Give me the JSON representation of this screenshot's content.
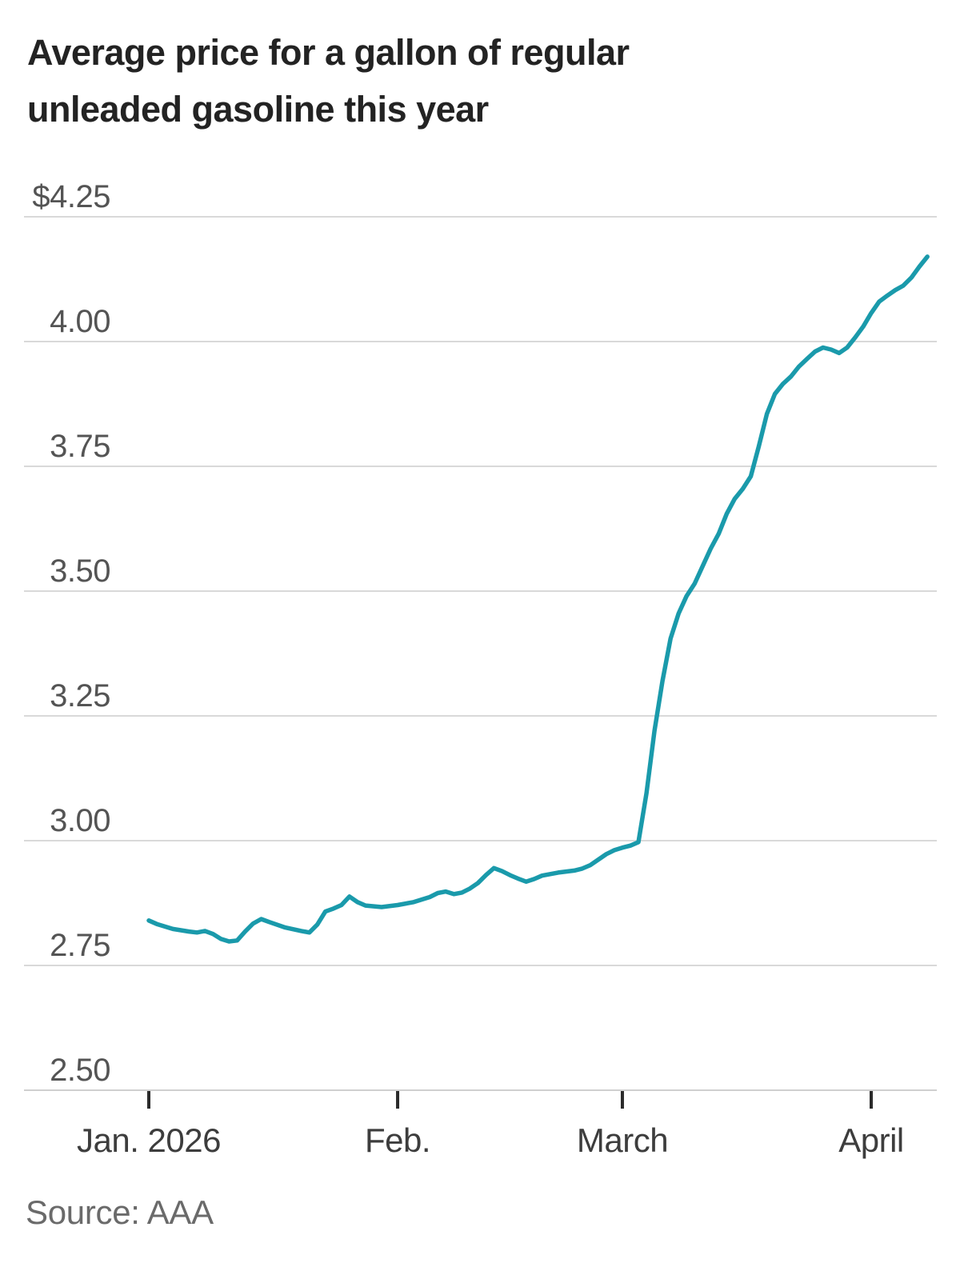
{
  "title": {
    "line1": "Average price for a gallon of regular",
    "line2": "unleaded gasoline this year"
  },
  "source": "Source: AAA",
  "colors": {
    "background": "#ffffff",
    "line": "#1a9aab",
    "grid": "#d9d9d9",
    "axis": "#d0d0d0",
    "tick_mark": "#2b2b2b",
    "title_text": "#232323",
    "y_label": "#545454",
    "x_label": "#3d3d3d",
    "source_text": "#6a6a6a"
  },
  "chart_data": {
    "type": "line",
    "title": "Average price for a gallon of regular unleaded gasoline this year",
    "xlabel": "",
    "ylabel": "",
    "units": "USD per gallon",
    "ylim": [
      2.5,
      4.25
    ],
    "xlim": [
      "2026-01-01",
      "2026-04-08"
    ],
    "grid": "horizontal",
    "legend": "none",
    "y_ticks": [
      {
        "value": 4.25,
        "label": "$4.25"
      },
      {
        "value": 4.0,
        "label": "4.00"
      },
      {
        "value": 3.75,
        "label": "3.75"
      },
      {
        "value": 3.5,
        "label": "3.50"
      },
      {
        "value": 3.25,
        "label": "3.25"
      },
      {
        "value": 3.0,
        "label": "3.00"
      },
      {
        "value": 2.75,
        "label": "2.75"
      },
      {
        "value": 2.5,
        "label": "2.50"
      }
    ],
    "x_ticks": [
      {
        "date": "2026-01-01",
        "label": "Jan. 2026"
      },
      {
        "date": "2026-02-01",
        "label": "Feb."
      },
      {
        "date": "2026-03-01",
        "label": "March"
      },
      {
        "date": "2026-04-01",
        "label": "April"
      }
    ],
    "series": [
      {
        "name": "Average price, regular unleaded gasoline ($/gal)",
        "points": [
          [
            "2026-01-01",
            2.84
          ],
          [
            "2026-01-02",
            2.833
          ],
          [
            "2026-01-04",
            2.823
          ],
          [
            "2026-01-06",
            2.818
          ],
          [
            "2026-01-07",
            2.816
          ],
          [
            "2026-01-08",
            2.819
          ],
          [
            "2026-01-09",
            2.813
          ],
          [
            "2026-01-10",
            2.803
          ],
          [
            "2026-01-11",
            2.798
          ],
          [
            "2026-01-12",
            2.8
          ],
          [
            "2026-01-13",
            2.818
          ],
          [
            "2026-01-14",
            2.834
          ],
          [
            "2026-01-15",
            2.843
          ],
          [
            "2026-01-16",
            2.837
          ],
          [
            "2026-01-18",
            2.826
          ],
          [
            "2026-01-20",
            2.819
          ],
          [
            "2026-01-21",
            2.816
          ],
          [
            "2026-01-22",
            2.832
          ],
          [
            "2026-01-23",
            2.858
          ],
          [
            "2026-01-24",
            2.864
          ],
          [
            "2026-01-25",
            2.871
          ],
          [
            "2026-01-26",
            2.888
          ],
          [
            "2026-01-27",
            2.877
          ],
          [
            "2026-01-28",
            2.87
          ],
          [
            "2026-01-30",
            2.867
          ],
          [
            "2026-02-01",
            2.871
          ],
          [
            "2026-02-03",
            2.877
          ],
          [
            "2026-02-05",
            2.887
          ],
          [
            "2026-02-06",
            2.895
          ],
          [
            "2026-02-07",
            2.898
          ],
          [
            "2026-02-08",
            2.893
          ],
          [
            "2026-02-09",
            2.896
          ],
          [
            "2026-02-10",
            2.904
          ],
          [
            "2026-02-11",
            2.915
          ],
          [
            "2026-02-12",
            2.931
          ],
          [
            "2026-02-13",
            2.945
          ],
          [
            "2026-02-14",
            2.939
          ],
          [
            "2026-02-15",
            2.931
          ],
          [
            "2026-02-16",
            2.924
          ],
          [
            "2026-02-17",
            2.918
          ],
          [
            "2026-02-18",
            2.923
          ],
          [
            "2026-02-19",
            2.93
          ],
          [
            "2026-02-21",
            2.936
          ],
          [
            "2026-02-23",
            2.94
          ],
          [
            "2026-02-24",
            2.944
          ],
          [
            "2026-02-25",
            2.951
          ],
          [
            "2026-02-26",
            2.962
          ],
          [
            "2026-02-27",
            2.973
          ],
          [
            "2026-02-28",
            2.981
          ],
          [
            "2026-03-01",
            2.986
          ],
          [
            "2026-03-02",
            2.99
          ],
          [
            "2026-03-03",
            2.997
          ],
          [
            "2026-03-04",
            3.095
          ],
          [
            "2026-03-05",
            3.22
          ],
          [
            "2026-03-06",
            3.32
          ],
          [
            "2026-03-07",
            3.405
          ],
          [
            "2026-03-08",
            3.455
          ],
          [
            "2026-03-09",
            3.49
          ],
          [
            "2026-03-10",
            3.515
          ],
          [
            "2026-03-11",
            3.55
          ],
          [
            "2026-03-12",
            3.585
          ],
          [
            "2026-03-13",
            3.615
          ],
          [
            "2026-03-14",
            3.655
          ],
          [
            "2026-03-15",
            3.685
          ],
          [
            "2026-03-16",
            3.705
          ],
          [
            "2026-03-17",
            3.73
          ],
          [
            "2026-03-18",
            3.79
          ],
          [
            "2026-03-19",
            3.855
          ],
          [
            "2026-03-20",
            3.895
          ],
          [
            "2026-03-21",
            3.915
          ],
          [
            "2026-03-22",
            3.93
          ],
          [
            "2026-03-23",
            3.95
          ],
          [
            "2026-03-24",
            3.965
          ],
          [
            "2026-03-25",
            3.98
          ],
          [
            "2026-03-26",
            3.988
          ],
          [
            "2026-03-27",
            3.984
          ],
          [
            "2026-03-28",
            3.977
          ],
          [
            "2026-03-29",
            3.988
          ],
          [
            "2026-03-30",
            4.008
          ],
          [
            "2026-03-31",
            4.03
          ],
          [
            "2026-04-01",
            4.057
          ],
          [
            "2026-04-02",
            4.08
          ],
          [
            "2026-04-03",
            4.092
          ],
          [
            "2026-04-04",
            4.103
          ],
          [
            "2026-04-05",
            4.112
          ],
          [
            "2026-04-06",
            4.128
          ],
          [
            "2026-04-07",
            4.15
          ],
          [
            "2026-04-08",
            4.17
          ]
        ]
      }
    ]
  }
}
